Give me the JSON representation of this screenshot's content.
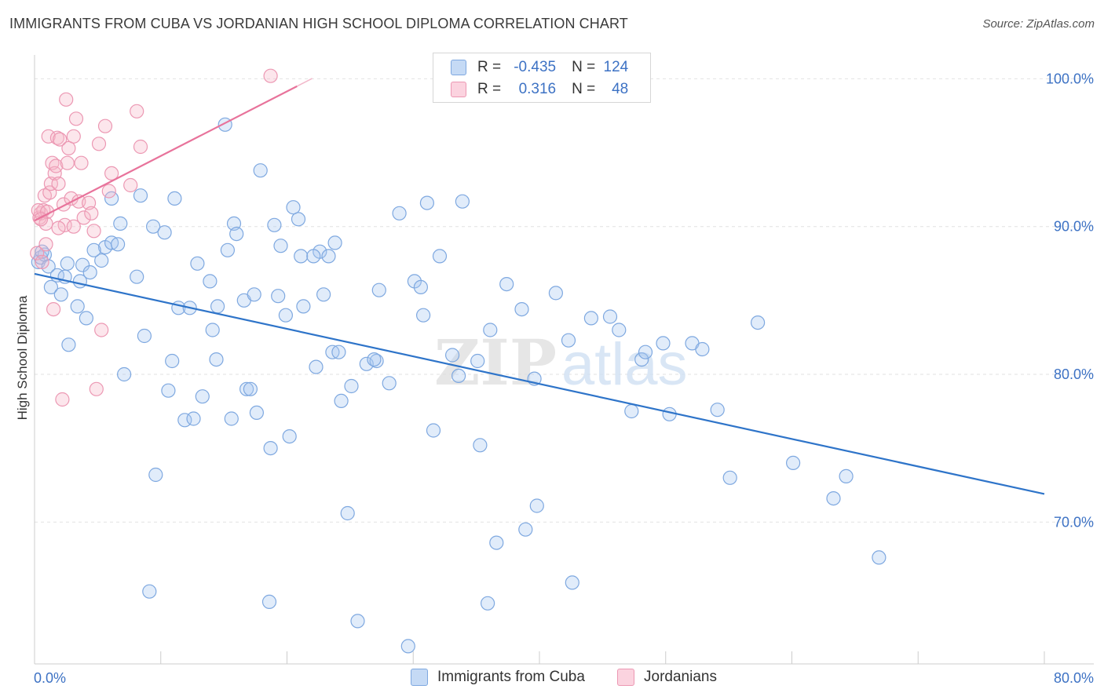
{
  "header": {
    "title": "IMMIGRANTS FROM CUBA VS JORDANIAN HIGH SCHOOL DIPLOMA CORRELATION CHART",
    "source": "Source: ZipAtlas.com"
  },
  "watermark": {
    "zip": "ZIP",
    "atlas": "atlas"
  },
  "legend": {
    "rows": [
      {
        "r_label": "R =",
        "r_value": "-0.435",
        "n_label": "N =",
        "n_value": "124",
        "color": "#a8c8f0"
      },
      {
        "r_label": "R =",
        "r_value": "0.316",
        "n_label": "N =",
        "n_value": "48",
        "color": "#f7b6c8"
      }
    ]
  },
  "bottom_legend": {
    "items": [
      {
        "label": "Immigrants from Cuba",
        "color": "#a8c8f0"
      },
      {
        "label": "Jordanians",
        "color": "#f7b6c8"
      }
    ]
  },
  "colors": {
    "blue_fill": "rgba(168,200,240,0.35)",
    "blue_stroke": "#7ea8e0",
    "blue_line": "#2e74c9",
    "pink_fill": "rgba(247,182,200,0.35)",
    "pink_stroke": "#ec98b3",
    "pink_line": "#e8739b",
    "grid": "#e2e2e2",
    "tick_text": "#3d72c4"
  },
  "chart_data": {
    "type": "scatter",
    "title": "IMMIGRANTS FROM CUBA VS JORDANIAN HIGH SCHOOL DIPLOMA CORRELATION CHART",
    "xlabel": "",
    "ylabel": "High School Diploma",
    "xlim": [
      0,
      80
    ],
    "ylim": [
      60.4,
      102.2
    ],
    "x_tick_labels": [
      "0.0%",
      "80.0%"
    ],
    "y_ticks": [
      70,
      80,
      90,
      100
    ],
    "y_tick_labels": [
      "70.0%",
      "80.0%",
      "90.0%",
      "100.0%"
    ],
    "grid": true,
    "legend_position": "top-center",
    "series": [
      {
        "name": "Immigrants from Cuba",
        "trend": {
          "x": [
            0,
            80
          ],
          "y": [
            86.8,
            71.9
          ]
        },
        "points": [
          [
            0.3,
            87.6
          ],
          [
            0.5,
            87.9
          ],
          [
            0.8,
            88.1
          ],
          [
            1.1,
            87.3
          ],
          [
            1.3,
            85.9
          ],
          [
            1.8,
            86.7
          ],
          [
            2.1,
            85.4
          ],
          [
            2.6,
            87.5
          ],
          [
            0.6,
            88.3
          ],
          [
            2.7,
            82.0
          ],
          [
            3.4,
            84.6
          ],
          [
            3.6,
            86.3
          ],
          [
            3.8,
            87.4
          ],
          [
            4.1,
            83.8
          ],
          [
            4.4,
            86.9
          ],
          [
            5.3,
            87.7
          ],
          [
            5.6,
            88.6
          ],
          [
            4.7,
            88.4
          ],
          [
            6.1,
            88.9
          ],
          [
            6.6,
            88.8
          ],
          [
            6.1,
            91.9
          ],
          [
            6.8,
            90.2
          ],
          [
            7.1,
            80.0
          ],
          [
            8.1,
            86.6
          ],
          [
            8.4,
            92.1
          ],
          [
            8.7,
            82.6
          ],
          [
            9.1,
            65.3
          ],
          [
            9.4,
            90.0
          ],
          [
            9.6,
            73.2
          ],
          [
            10.3,
            89.6
          ],
          [
            10.6,
            78.9
          ],
          [
            10.9,
            80.9
          ],
          [
            11.1,
            91.9
          ],
          [
            11.4,
            84.5
          ],
          [
            11.9,
            76.9
          ],
          [
            12.3,
            84.5
          ],
          [
            12.6,
            77.0
          ],
          [
            12.9,
            87.5
          ],
          [
            13.3,
            78.5
          ],
          [
            13.9,
            86.3
          ],
          [
            14.1,
            83.0
          ],
          [
            14.4,
            81.0
          ],
          [
            14.5,
            84.6
          ],
          [
            15.1,
            96.9
          ],
          [
            15.3,
            88.4
          ],
          [
            15.6,
            77.0
          ],
          [
            15.8,
            90.2
          ],
          [
            16.0,
            89.5
          ],
          [
            16.6,
            85.0
          ],
          [
            16.8,
            79.0
          ],
          [
            17.1,
            79.0
          ],
          [
            17.4,
            85.4
          ],
          [
            17.6,
            77.4
          ],
          [
            17.9,
            93.8
          ],
          [
            18.6,
            64.6
          ],
          [
            18.7,
            75.0
          ],
          [
            19.0,
            90.1
          ],
          [
            19.3,
            85.3
          ],
          [
            19.5,
            88.7
          ],
          [
            19.9,
            84.0
          ],
          [
            20.2,
            75.8
          ],
          [
            20.5,
            91.3
          ],
          [
            20.9,
            90.5
          ],
          [
            21.1,
            88.0
          ],
          [
            21.3,
            84.6
          ],
          [
            22.3,
            80.5
          ],
          [
            22.6,
            88.3
          ],
          [
            22.9,
            85.4
          ],
          [
            23.3,
            88.0
          ],
          [
            23.6,
            81.5
          ],
          [
            23.8,
            88.9
          ],
          [
            24.1,
            81.5
          ],
          [
            24.3,
            78.2
          ],
          [
            24.8,
            70.6
          ],
          [
            25.1,
            79.2
          ],
          [
            25.6,
            63.3
          ],
          [
            26.3,
            80.7
          ],
          [
            27.1,
            80.9
          ],
          [
            27.3,
            85.7
          ],
          [
            28.1,
            79.4
          ],
          [
            28.9,
            90.9
          ],
          [
            29.6,
            61.6
          ],
          [
            30.1,
            86.3
          ],
          [
            30.6,
            85.9
          ],
          [
            30.8,
            84.0
          ],
          [
            31.1,
            91.6
          ],
          [
            31.6,
            76.2
          ],
          [
            32.1,
            88.0
          ],
          [
            33.1,
            81.3
          ],
          [
            33.9,
            91.7
          ],
          [
            33.6,
            79.9
          ],
          [
            35.1,
            80.9
          ],
          [
            35.3,
            75.2
          ],
          [
            35.9,
            64.5
          ],
          [
            36.1,
            83.0
          ],
          [
            36.6,
            68.6
          ],
          [
            37.4,
            86.1
          ],
          [
            38.6,
            84.4
          ],
          [
            38.9,
            69.5
          ],
          [
            39.6,
            79.7
          ],
          [
            39.8,
            71.1
          ],
          [
            41.3,
            85.5
          ],
          [
            42.3,
            82.3
          ],
          [
            42.6,
            65.9
          ],
          [
            44.1,
            83.8
          ],
          [
            45.6,
            83.9
          ],
          [
            46.3,
            83.0
          ],
          [
            47.3,
            77.5
          ],
          [
            48.1,
            81.0
          ],
          [
            48.4,
            81.5
          ],
          [
            49.8,
            82.1
          ],
          [
            50.3,
            77.3
          ],
          [
            52.1,
            82.1
          ],
          [
            52.9,
            81.7
          ],
          [
            54.1,
            77.6
          ],
          [
            55.1,
            73.0
          ],
          [
            57.3,
            83.5
          ],
          [
            60.1,
            74.0
          ],
          [
            63.3,
            71.6
          ],
          [
            64.3,
            73.1
          ],
          [
            66.9,
            67.6
          ],
          [
            2.4,
            86.6
          ],
          [
            22.1,
            88.0
          ],
          [
            26.9,
            81.0
          ]
        ]
      },
      {
        "name": "Jordanians",
        "trend": {
          "x": [
            0,
            20.8
          ],
          "y": [
            90.4,
            99.5
          ]
        },
        "points": [
          [
            0.2,
            88.2
          ],
          [
            0.4,
            90.6
          ],
          [
            0.5,
            90.9
          ],
          [
            0.6,
            87.6
          ],
          [
            0.7,
            91.1
          ],
          [
            0.8,
            92.1
          ],
          [
            0.9,
            90.2
          ],
          [
            1.1,
            96.1
          ],
          [
            1.2,
            92.3
          ],
          [
            1.3,
            92.9
          ],
          [
            1.4,
            94.3
          ],
          [
            1.5,
            84.4
          ],
          [
            1.6,
            93.6
          ],
          [
            1.7,
            94.1
          ],
          [
            1.8,
            96.0
          ],
          [
            1.9,
            92.9
          ],
          [
            2.0,
            95.9
          ],
          [
            2.2,
            78.3
          ],
          [
            2.3,
            91.5
          ],
          [
            2.4,
            90.1
          ],
          [
            2.6,
            94.3
          ],
          [
            2.7,
            95.3
          ],
          [
            2.9,
            91.9
          ],
          [
            3.1,
            90.0
          ],
          [
            3.3,
            97.3
          ],
          [
            3.5,
            91.7
          ],
          [
            3.7,
            94.3
          ],
          [
            3.9,
            90.6
          ],
          [
            4.3,
            91.6
          ],
          [
            4.5,
            90.9
          ],
          [
            4.7,
            89.7
          ],
          [
            4.9,
            79.0
          ],
          [
            5.1,
            95.6
          ],
          [
            5.3,
            83.0
          ],
          [
            5.6,
            96.8
          ],
          [
            5.9,
            92.4
          ],
          [
            6.1,
            93.6
          ],
          [
            7.6,
            92.8
          ],
          [
            8.1,
            97.8
          ],
          [
            8.4,
            95.4
          ],
          [
            18.7,
            100.2
          ],
          [
            2.5,
            98.6
          ],
          [
            0.3,
            91.1
          ],
          [
            0.9,
            88.8
          ],
          [
            1.0,
            91.0
          ],
          [
            1.9,
            89.9
          ],
          [
            3.1,
            96.1
          ],
          [
            0.5,
            90.5
          ]
        ]
      }
    ]
  }
}
